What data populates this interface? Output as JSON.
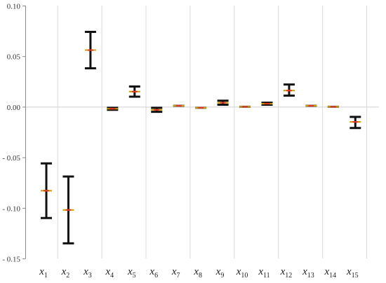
{
  "chart_data": {
    "type": "errorbar",
    "title": "",
    "xlabel": "",
    "ylabel": "",
    "ylim": [
      -0.15,
      0.1
    ],
    "yticks": [
      0.1,
      0.05,
      0.0,
      -0.05,
      -0.1,
      -0.15
    ],
    "ytick_labels": [
      "0.10",
      "0.05",
      "0.00",
      "- 0.05",
      "- 0.10",
      "- 0.15"
    ],
    "grid": "vertical",
    "categories": [
      "x1",
      "x2",
      "x3",
      "x4",
      "x5",
      "x6",
      "x7",
      "x8",
      "x9",
      "x10",
      "x11",
      "x12",
      "x13",
      "x14",
      "x15"
    ],
    "category_labels": [
      {
        "base": "x",
        "sub": "1"
      },
      {
        "base": "x",
        "sub": "2"
      },
      {
        "base": "x",
        "sub": "3"
      },
      {
        "base": "x",
        "sub": "4"
      },
      {
        "base": "x",
        "sub": "5"
      },
      {
        "base": "x",
        "sub": "6"
      },
      {
        "base": "x",
        "sub": "7"
      },
      {
        "base": "x",
        "sub": "8"
      },
      {
        "base": "x",
        "sub": "9"
      },
      {
        "base": "x",
        "sub": "10"
      },
      {
        "base": "x",
        "sub": "11"
      },
      {
        "base": "x",
        "sub": "12"
      },
      {
        "base": "x",
        "sub": "13"
      },
      {
        "base": "x",
        "sub": "14"
      },
      {
        "base": "x",
        "sub": "15"
      }
    ],
    "series": [
      {
        "mean": [
          -0.083,
          -0.102,
          0.056,
          -0.002,
          0.015,
          -0.003,
          0.001,
          -0.001,
          0.004,
          0.0,
          0.003,
          0.016,
          0.001,
          0.0,
          -0.015
        ],
        "upper": [
          -0.056,
          -0.069,
          0.074,
          -0.001,
          0.02,
          -0.001,
          0.001,
          -0.001,
          0.006,
          0.0,
          0.004,
          0.022,
          0.001,
          0.0,
          -0.01
        ],
        "lower": [
          -0.11,
          -0.135,
          0.038,
          -0.003,
          0.01,
          -0.005,
          0.001,
          -0.002,
          0.002,
          0.0,
          0.002,
          0.011,
          0.001,
          0.0,
          -0.021
        ]
      }
    ],
    "colors": {
      "whisker": "#111111",
      "mean_mark_main": "#e8321e",
      "mean_mark_edge": "#c8a000",
      "axis": "#888888",
      "grid": "#d9d9d9"
    }
  }
}
